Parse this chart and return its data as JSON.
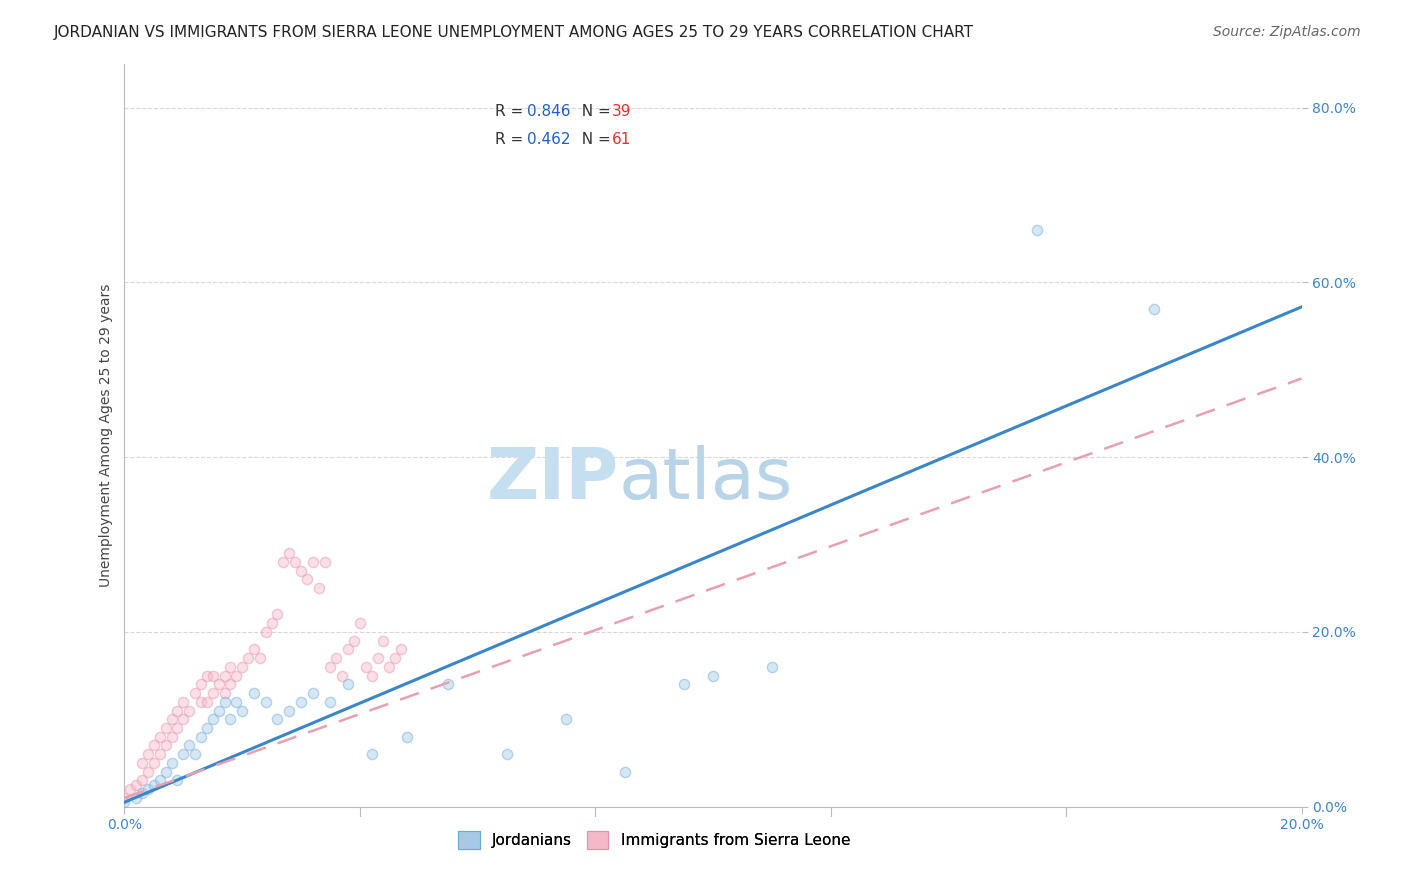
{
  "title": "JORDANIAN VS IMMIGRANTS FROM SIERRA LEONE UNEMPLOYMENT AMONG AGES 25 TO 29 YEARS CORRELATION CHART",
  "source": "Source: ZipAtlas.com",
  "ylabel": "Unemployment Among Ages 25 to 29 years",
  "watermark_part1": "ZIP",
  "watermark_part2": "atlas",
  "xmin": 0.0,
  "xmax": 0.2,
  "ymin": 0.0,
  "ymax": 0.85,
  "ytick_labels": [
    "0.0%",
    "20.0%",
    "40.0%",
    "60.0%",
    "80.0%"
  ],
  "ytick_values": [
    0.0,
    0.2,
    0.4,
    0.6,
    0.8
  ],
  "xtick_labels": [
    "0.0%",
    "20.0%"
  ],
  "xtick_values": [
    0.0,
    0.2
  ],
  "blue_R": 0.846,
  "blue_N": 39,
  "pink_R": 0.462,
  "pink_N": 61,
  "blue_fill_color": "#a8c8e8",
  "blue_edge_color": "#6aaad4",
  "blue_line_color": "#3a86c8",
  "pink_fill_color": "#f4b8c8",
  "pink_edge_color": "#e890a8",
  "pink_line_color": "#e8a0b0",
  "blue_scatter_x": [
    0.0,
    0.002,
    0.003,
    0.004,
    0.005,
    0.006,
    0.007,
    0.008,
    0.009,
    0.01,
    0.011,
    0.012,
    0.013,
    0.014,
    0.015,
    0.016,
    0.017,
    0.018,
    0.019,
    0.02,
    0.022,
    0.024,
    0.026,
    0.028,
    0.03,
    0.032,
    0.035,
    0.038,
    0.042,
    0.048,
    0.055,
    0.065,
    0.075,
    0.085,
    0.095,
    0.1,
    0.11,
    0.155,
    0.175
  ],
  "blue_scatter_y": [
    0.005,
    0.01,
    0.015,
    0.02,
    0.025,
    0.03,
    0.04,
    0.05,
    0.03,
    0.06,
    0.07,
    0.06,
    0.08,
    0.09,
    0.1,
    0.11,
    0.12,
    0.1,
    0.12,
    0.11,
    0.13,
    0.12,
    0.1,
    0.11,
    0.12,
    0.13,
    0.12,
    0.14,
    0.06,
    0.08,
    0.14,
    0.06,
    0.1,
    0.04,
    0.14,
    0.15,
    0.16,
    0.66,
    0.57
  ],
  "pink_scatter_x": [
    0.0,
    0.001,
    0.002,
    0.003,
    0.003,
    0.004,
    0.004,
    0.005,
    0.005,
    0.006,
    0.006,
    0.007,
    0.007,
    0.008,
    0.008,
    0.009,
    0.009,
    0.01,
    0.01,
    0.011,
    0.012,
    0.013,
    0.013,
    0.014,
    0.014,
    0.015,
    0.015,
    0.016,
    0.017,
    0.017,
    0.018,
    0.018,
    0.019,
    0.02,
    0.021,
    0.022,
    0.023,
    0.024,
    0.025,
    0.026,
    0.027,
    0.028,
    0.029,
    0.03,
    0.031,
    0.032,
    0.033,
    0.034,
    0.035,
    0.036,
    0.037,
    0.038,
    0.039,
    0.04,
    0.041,
    0.042,
    0.043,
    0.044,
    0.045,
    0.046,
    0.047
  ],
  "pink_scatter_y": [
    0.01,
    0.02,
    0.025,
    0.03,
    0.05,
    0.04,
    0.06,
    0.05,
    0.07,
    0.06,
    0.08,
    0.07,
    0.09,
    0.08,
    0.1,
    0.09,
    0.11,
    0.1,
    0.12,
    0.11,
    0.13,
    0.12,
    0.14,
    0.12,
    0.15,
    0.13,
    0.15,
    0.14,
    0.13,
    0.15,
    0.14,
    0.16,
    0.15,
    0.16,
    0.17,
    0.18,
    0.17,
    0.2,
    0.21,
    0.22,
    0.28,
    0.29,
    0.28,
    0.27,
    0.26,
    0.28,
    0.25,
    0.28,
    0.16,
    0.17,
    0.15,
    0.18,
    0.19,
    0.21,
    0.16,
    0.15,
    0.17,
    0.19,
    0.16,
    0.17,
    0.18
  ],
  "blue_line_x": [
    0.0,
    0.2
  ],
  "blue_line_y": [
    0.005,
    0.572
  ],
  "pink_line_x": [
    0.0,
    0.2
  ],
  "pink_line_y": [
    0.01,
    0.49
  ],
  "bg_color": "#ffffff",
  "grid_color": "#d8d8d8",
  "title_fontsize": 11,
  "axis_label_fontsize": 10,
  "tick_fontsize": 10,
  "legend_fontsize": 11,
  "source_fontsize": 10,
  "watermark_fontsize": 52,
  "watermark_color_zip": "#c5dff0",
  "watermark_color_atlas": "#b8d4e8",
  "scatter_size": 55,
  "scatter_alpha": 0.45,
  "legend_R_color": "#2060c0",
  "legend_N_color": "#e03030"
}
